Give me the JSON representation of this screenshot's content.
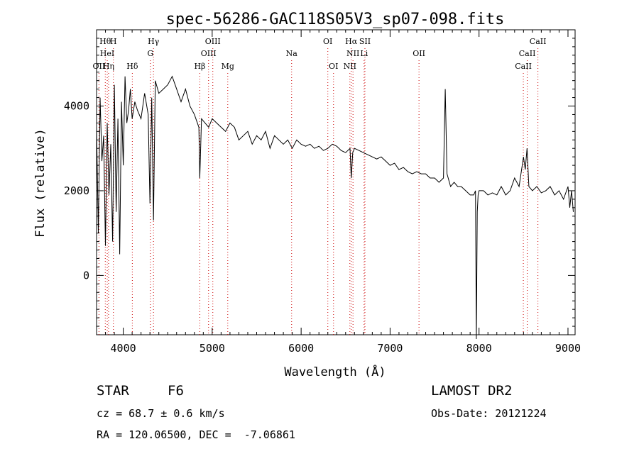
{
  "chart_data": {
    "type": "line",
    "title": "spec-56286-GAC118S05V3_sp07-098.fits",
    "xlabel": "Wavelength (Å)",
    "ylabel": "Flux (relative)",
    "xlim": [
      3700,
      9080
    ],
    "ylim": [
      -1400,
      5800
    ],
    "x_ticks": [
      4000,
      5000,
      6000,
      7000,
      8000,
      9000
    ],
    "x_tick_labels": [
      "4000",
      "5000",
      "6000",
      "7000",
      "8000",
      "9000"
    ],
    "y_ticks": [
      0,
      2000,
      4000
    ],
    "y_tick_labels": [
      "0",
      "2000",
      "4000"
    ],
    "grid": false,
    "line_color": "#000000",
    "marker_color": "#cc0000",
    "series": [
      {
        "x": [
          3700,
          3720,
          3740,
          3760,
          3780,
          3800,
          3820,
          3840,
          3860,
          3880,
          3900,
          3920,
          3940,
          3960,
          3980,
          4000,
          4020,
          4040,
          4060,
          4080,
          4100,
          4130,
          4160,
          4200,
          4240,
          4280,
          4300,
          4320,
          4340,
          4360,
          4400,
          4450,
          4500,
          4550,
          4600,
          4650,
          4700,
          4750,
          4800,
          4850,
          4861,
          4880,
          4920,
          4960,
          5000,
          5050,
          5100,
          5150,
          5200,
          5250,
          5300,
          5350,
          5400,
          5450,
          5500,
          5550,
          5600,
          5650,
          5700,
          5750,
          5800,
          5850,
          5900,
          5950,
          6000,
          6050,
          6100,
          6150,
          6200,
          6250,
          6300,
          6350,
          6400,
          6450,
          6500,
          6550,
          6563,
          6580,
          6600,
          6650,
          6700,
          6750,
          6800,
          6850,
          6900,
          6950,
          7000,
          7050,
          7100,
          7150,
          7200,
          7250,
          7300,
          7350,
          7400,
          7450,
          7500,
          7550,
          7600,
          7620,
          7640,
          7680,
          7720,
          7760,
          7800,
          7850,
          7900,
          7940,
          7960,
          7970,
          7980,
          7990,
          8000,
          8050,
          8100,
          8150,
          8200,
          8250,
          8300,
          8350,
          8400,
          8450,
          8500,
          8520,
          8540,
          8560,
          8600,
          8650,
          8700,
          8750,
          8800,
          8850,
          8900,
          8950,
          9000,
          9020,
          9040,
          9060
        ],
        "y": [
          3500,
          1000,
          4200,
          2700,
          3300,
          700,
          3600,
          1900,
          3100,
          800,
          4500,
          1500,
          3700,
          500,
          4100,
          2600,
          4700,
          3600,
          3900,
          4400,
          3700,
          4100,
          3900,
          3700,
          4300,
          3800,
          1700,
          4200,
          1300,
          4600,
          4300,
          4400,
          4500,
          4700,
          4400,
          4100,
          4400,
          4000,
          3800,
          3500,
          2300,
          3700,
          3600,
          3500,
          3700,
          3600,
          3500,
          3400,
          3600,
          3500,
          3200,
          3300,
          3400,
          3100,
          3300,
          3200,
          3400,
          3000,
          3300,
          3200,
          3100,
          3200,
          3000,
          3200,
          3100,
          3050,
          3100,
          3000,
          3050,
          2950,
          3000,
          3100,
          3050,
          2950,
          2900,
          3000,
          2300,
          2900,
          3000,
          2950,
          2900,
          2850,
          2800,
          2750,
          2800,
          2700,
          2600,
          2650,
          2500,
          2550,
          2450,
          2400,
          2450,
          2400,
          2400,
          2300,
          2300,
          2200,
          2300,
          4400,
          2400,
          2100,
          2200,
          2100,
          2100,
          2000,
          1900,
          1900,
          2000,
          -1500,
          1500,
          1900,
          2000,
          2000,
          1900,
          1950,
          1900,
          2100,
          1900,
          2000,
          2300,
          2100,
          2800,
          2500,
          3000,
          2100,
          2000,
          2100,
          1950,
          2000,
          2100,
          1900,
          2000,
          1800,
          2100,
          1600,
          2000,
          1500
        ]
      }
    ],
    "lines": [
      {
        "label": "Hθ",
        "wl": 3798,
        "row": 1
      },
      {
        "label": "H",
        "wl": 3889,
        "row": 1
      },
      {
        "label": "HeI",
        "wl": 3820,
        "row": 2
      },
      {
        "label": "OII",
        "wl": 3727,
        "row": 3
      },
      {
        "label": "Hη",
        "wl": 3835,
        "row": 3
      },
      {
        "label": "Hδ",
        "wl": 4102,
        "row": 3
      },
      {
        "label": "Hγ",
        "wl": 4340,
        "row": 1
      },
      {
        "label": "G",
        "wl": 4305,
        "row": 2
      },
      {
        "label": "Hβ",
        "wl": 4861,
        "row": 3
      },
      {
        "label": "OIII",
        "wl": 5007,
        "row": 1
      },
      {
        "label": "OIII",
        "wl": 4959,
        "row": 2
      },
      {
        "label": "Mg",
        "wl": 5175,
        "row": 3
      },
      {
        "label": "Na",
        "wl": 5893,
        "row": 2
      },
      {
        "label": "OI",
        "wl": 6300,
        "row": 1
      },
      {
        "label": "OI",
        "wl": 6364,
        "row": 3
      },
      {
        "label": "Hα",
        "wl": 6563,
        "row": 1
      },
      {
        "label": "SII",
        "wl": 6717,
        "row": 1
      },
      {
        "label": "NII",
        "wl": 6583,
        "row": 2
      },
      {
        "label": "Li",
        "wl": 6708,
        "row": 2
      },
      {
        "label": "NII",
        "wl": 6548,
        "row": 3
      },
      {
        "label": "OII",
        "wl": 7325,
        "row": 2
      },
      {
        "label": "CaII",
        "wl": 8662,
        "row": 1
      },
      {
        "label": "CaII",
        "wl": 8542,
        "row": 2
      },
      {
        "label": "CaII",
        "wl": 8498,
        "row": 3
      }
    ]
  },
  "info": {
    "class_label": "STAR",
    "subclass": "F6",
    "survey": "LAMOST DR2",
    "cz": "cz = 68.7 ± 0.6 km/s",
    "obs_date": "Obs-Date: 20121224",
    "radec": "RA = 120.06500, DEC =  -7.06861"
  }
}
